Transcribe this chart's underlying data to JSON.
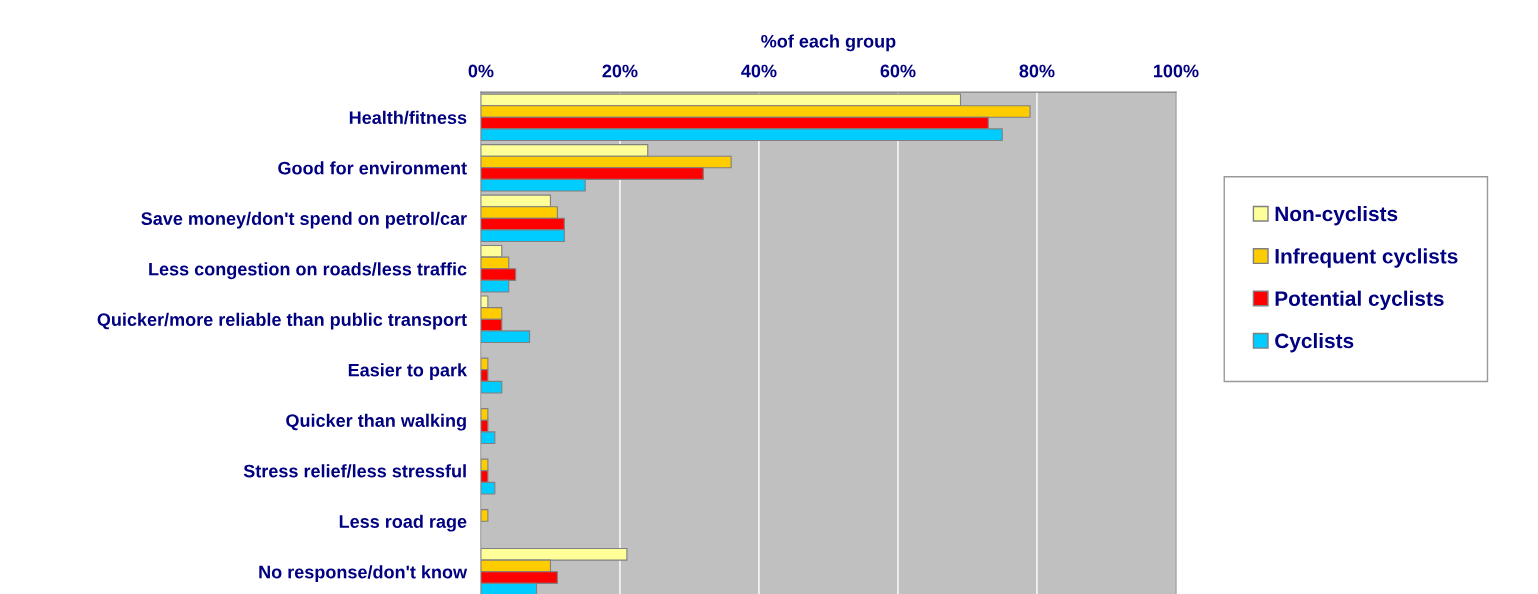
{
  "chart_data": {
    "type": "bar",
    "orientation": "horizontal",
    "xlabel": "%of each group",
    "categories": [
      "Health/fitness",
      "Good for environment",
      "Save money/don't spend on petrol/car",
      "Less congestion on roads/less traffic",
      "Quicker/more reliable than public transport",
      "Easier to park",
      "Quicker than walking",
      "Stress relief/less stressful",
      "Less road rage",
      "No response/don't know"
    ],
    "series": [
      {
        "name": "Non-cyclists",
        "color": "#ffff99",
        "values": [
          69,
          24,
          10,
          3,
          1,
          null,
          null,
          null,
          null,
          21
        ]
      },
      {
        "name": "Infrequent cyclists",
        "color": "#ffcc00",
        "values": [
          79,
          36,
          11,
          4,
          3,
          1,
          1,
          1,
          1,
          10
        ]
      },
      {
        "name": "Potential cyclists",
        "color": "#ff0000",
        "values": [
          73,
          32,
          12,
          5,
          3,
          1,
          1,
          1,
          null,
          11
        ]
      },
      {
        "name": "Cyclists",
        "color": "#00ccff",
        "values": [
          75,
          15,
          12,
          4,
          7,
          3,
          2,
          2,
          null,
          8
        ]
      }
    ],
    "xlim": [
      0,
      100
    ],
    "xticks": [
      {
        "value": 0,
        "label": "0%"
      },
      {
        "value": 20,
        "label": "20%"
      },
      {
        "value": 40,
        "label": "40%"
      },
      {
        "value": 60,
        "label": "60%"
      },
      {
        "value": 80,
        "label": "80%"
      },
      {
        "value": 100,
        "label": "100%"
      }
    ],
    "grid": "x",
    "legend": "right"
  }
}
